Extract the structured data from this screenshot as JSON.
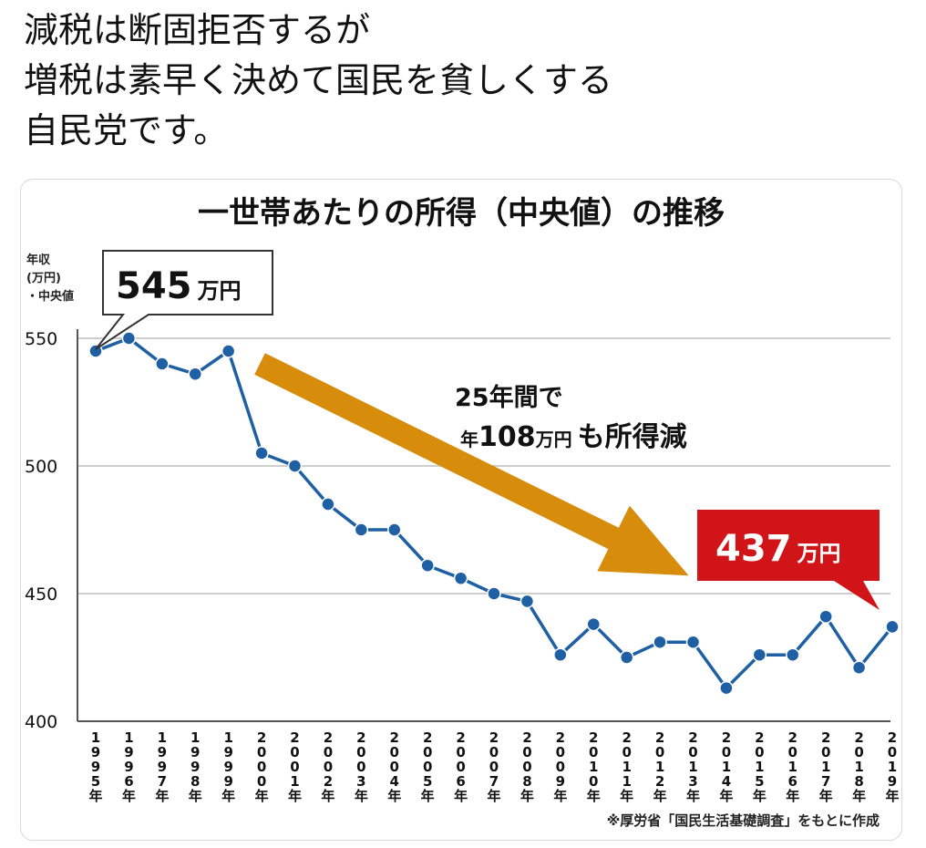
{
  "post": {
    "lines": [
      "減税は断固拒否するが",
      "増税は素早く決めて国民を貧しくする",
      "自民党です。"
    ]
  },
  "chart_data": {
    "type": "line",
    "title": "一世帯あたりの所得（中央値）の推移",
    "ylabel": [
      "年収",
      "(万円)",
      "・中央値"
    ],
    "ylim": [
      400,
      555
    ],
    "yticks": [
      400,
      450,
      500,
      550
    ],
    "x": [
      "1995年",
      "1996年",
      "1997年",
      "1998年",
      "1999年",
      "2000年",
      "2001年",
      "2002年",
      "2003年",
      "2004年",
      "2005年",
      "2006年",
      "2007年",
      "2008年",
      "2009年",
      "2010年",
      "2011年",
      "2012年",
      "2013年",
      "2014年",
      "2015年",
      "2016年",
      "2017年",
      "2018年",
      "2019年"
    ],
    "series": [
      {
        "values": [
          545,
          550,
          540,
          536,
          545,
          505,
          500,
          485,
          475,
          475,
          461,
          456,
          450,
          447,
          426,
          438,
          425,
          431,
          431,
          413,
          426,
          426,
          441,
          421,
          437
        ]
      }
    ],
    "grid": true,
    "callouts": {
      "start": {
        "value": "545",
        "unit": "万円"
      },
      "end": {
        "value": "437",
        "unit": "万円"
      }
    },
    "annotation": {
      "line1": "25年間で",
      "line2_small_a": "年",
      "line2_num": "108",
      "line2_small_b": "万円",
      "line2_rest": "も所得減"
    },
    "source": "※厚労省「国民生活基礎調査」をもとに作成",
    "colors": {
      "line": "#1f5fa3",
      "arrow": "#d88c0c",
      "end_callout": "#d01418",
      "grid": "#bdbdbd"
    }
  }
}
